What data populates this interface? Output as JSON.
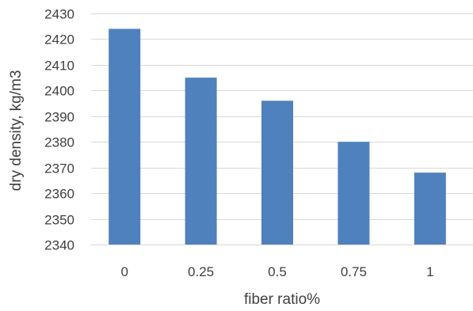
{
  "chart_data": {
    "type": "bar",
    "categories": [
      "0",
      "0.25",
      "0.5",
      "0.75",
      "1"
    ],
    "values": [
      2424,
      2405,
      2396,
      2380,
      2368
    ],
    "title": "",
    "xlabel": "fiber ratio%",
    "ylabel": "dry density, kg/m3",
    "ylim": [
      2340,
      2430
    ],
    "yticks": [
      2340,
      2350,
      2360,
      2370,
      2380,
      2390,
      2400,
      2410,
      2420,
      2430
    ],
    "grid": true,
    "legend": "none",
    "bar_color": "#4f81bd"
  }
}
